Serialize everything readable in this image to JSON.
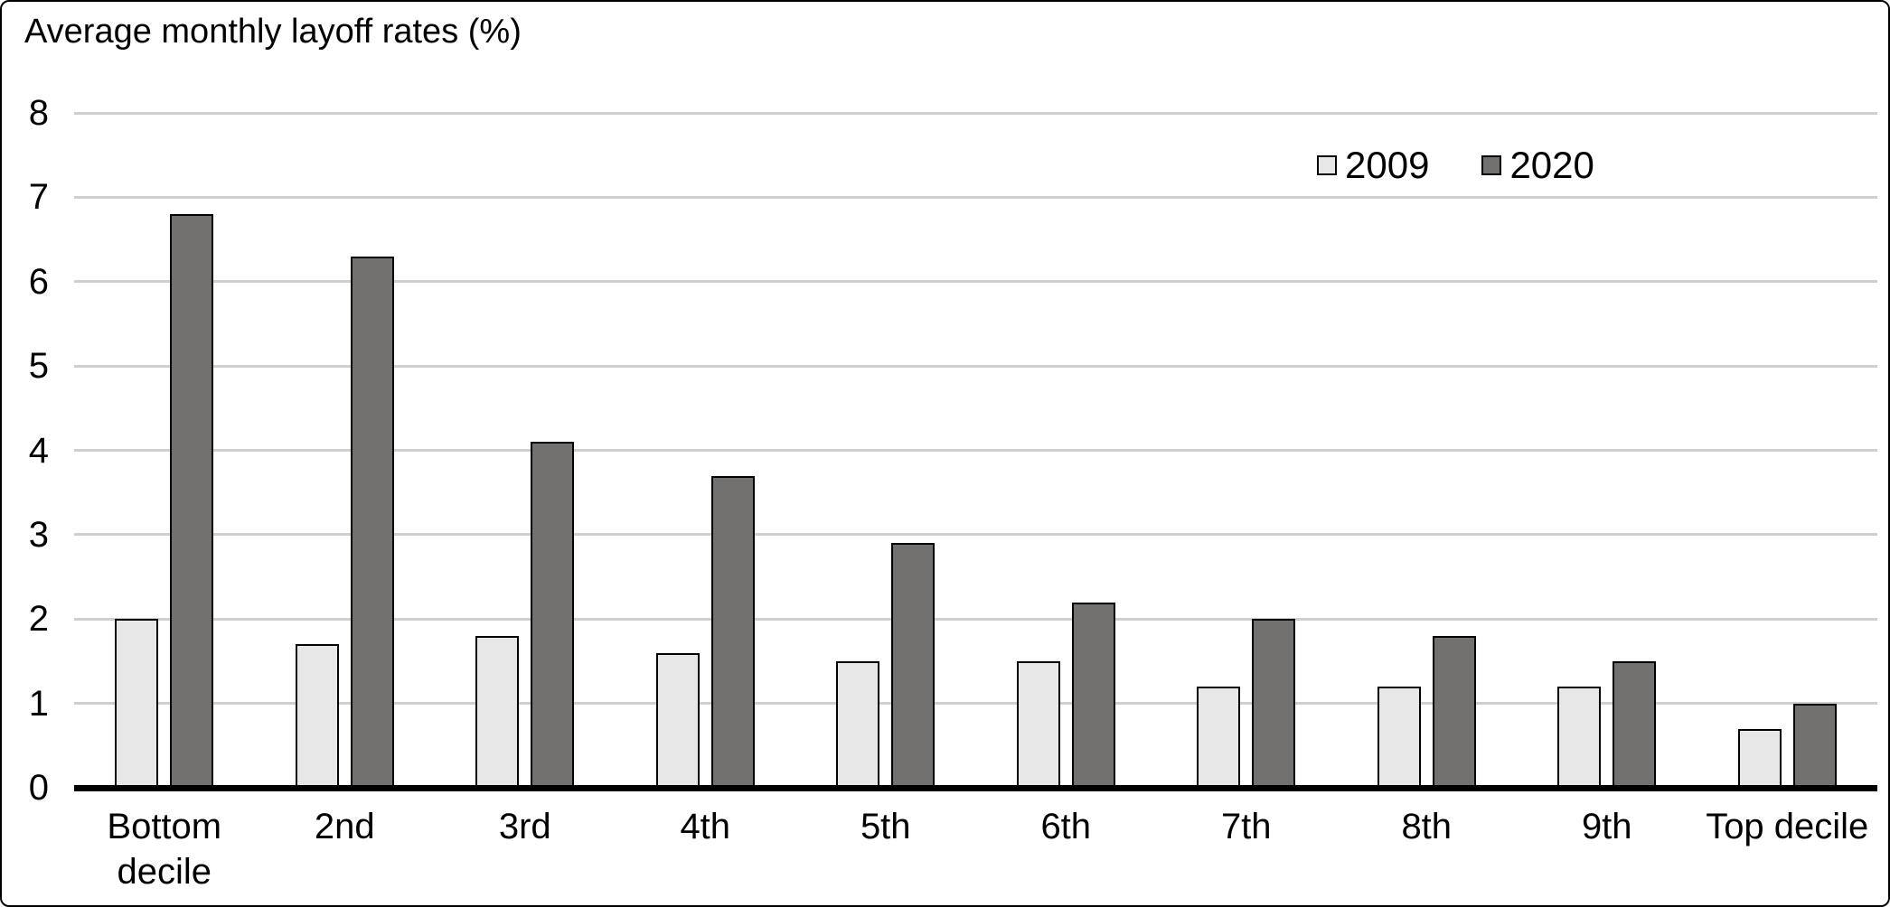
{
  "window": {
    "background": "#ffffff",
    "border_color": "#000000"
  },
  "chart_data": {
    "type": "bar",
    "title": "Average monthly layoff rates (%)",
    "categories": [
      "Bottom\ndecile",
      "2nd",
      "3rd",
      "4th",
      "5th",
      "6th",
      "7th",
      "8th",
      "9th",
      "Top decile"
    ],
    "series": [
      {
        "name": "2009",
        "color": "#e7e7e7",
        "values": [
          2.0,
          1.7,
          1.8,
          1.6,
          1.5,
          1.5,
          1.2,
          1.2,
          1.2,
          0.7
        ]
      },
      {
        "name": "2020",
        "color": "#737070",
        "values": [
          6.8,
          6.3,
          4.1,
          3.7,
          2.9,
          2.2,
          2.0,
          1.8,
          1.5,
          1.0
        ]
      }
    ],
    "xlabel": "",
    "ylabel": "",
    "ylim": [
      0,
      8
    ],
    "yticks": [
      0,
      1,
      2,
      3,
      4,
      5,
      6,
      7,
      8
    ],
    "grid": "horizontal",
    "gridline_color": "#cfcfcf",
    "axis_line_color": "#000000",
    "bar_outline_color": "#000000",
    "legend_position": "top-right"
  }
}
